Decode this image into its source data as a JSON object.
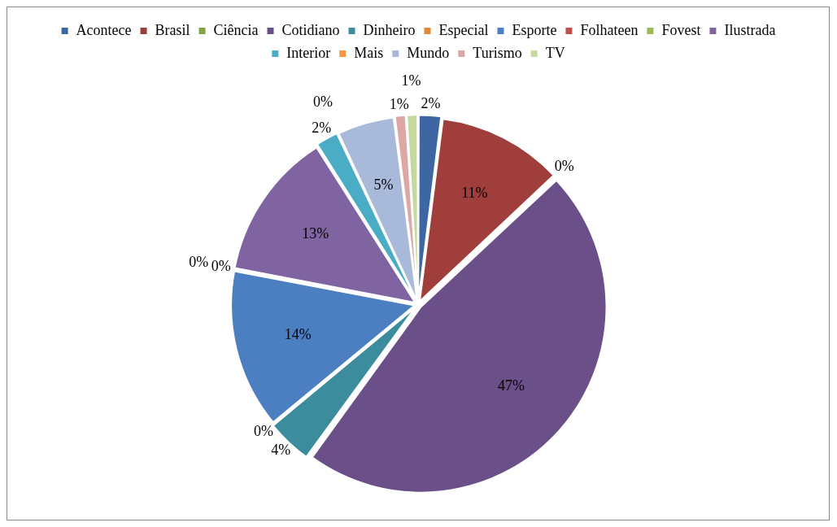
{
  "chart_data": {
    "type": "pie",
    "categories": [
      "Acontece",
      "Brasil",
      "Ciência",
      "Cotidiano",
      "Dinheiro",
      "Especial",
      "Esporte",
      "Folhateen",
      "Fovest",
      "Ilustrada",
      "Interior",
      "Mais",
      "Mundo",
      "Turismo",
      "TV"
    ],
    "values": [
      2,
      11,
      0,
      47,
      4,
      0,
      14,
      0,
      0,
      13,
      2,
      0,
      5,
      1,
      1
    ],
    "value_labels": [
      "2%",
      "11%",
      "0%",
      "47%",
      "4%",
      "0%",
      "14%",
      "0%",
      "0%",
      "13%",
      "2%",
      "0%",
      "5%",
      "1%",
      "1%"
    ],
    "colors": [
      "#3d66a3",
      "#a03e3c",
      "#83a443",
      "#6a4f88",
      "#3b8c9c",
      "#e0873a",
      "#4c7fc2",
      "#c0504d",
      "#9bbb59",
      "#8064a2",
      "#4bacc6",
      "#f79646",
      "#a8b9d9",
      "#dea7a6",
      "#c5d89e"
    ],
    "legend": "top"
  }
}
